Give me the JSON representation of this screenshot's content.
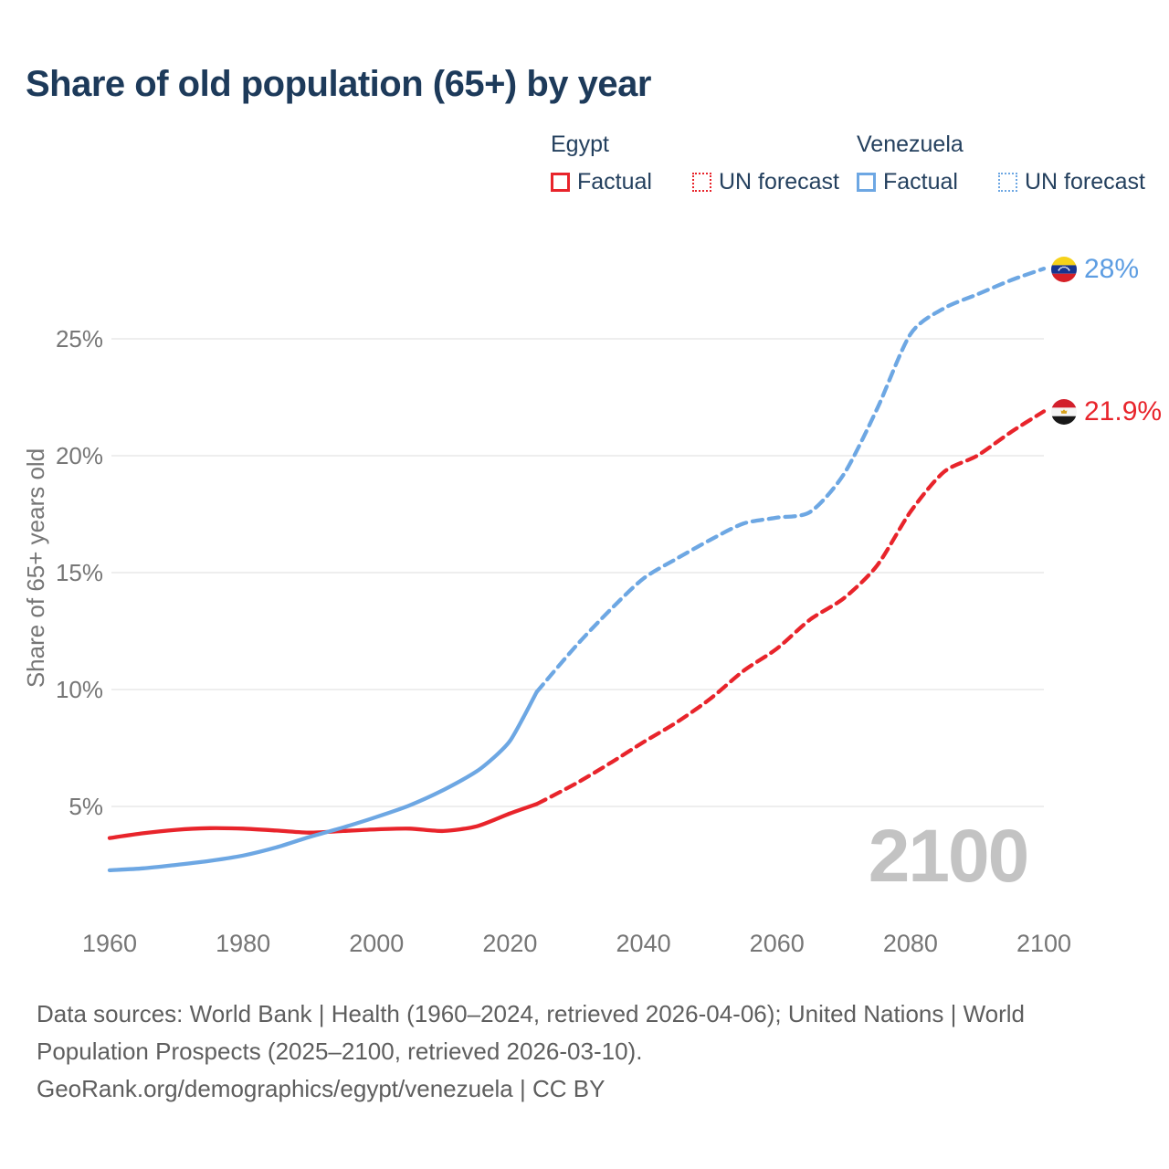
{
  "title": "Share of old population (65+) by year",
  "colors": {
    "title": "#1d3a5a",
    "legend_text": "#24405e",
    "egypt": "#e8242b",
    "venezuela": "#6da7e3",
    "venezuela_label": "#5d9de2",
    "grid": "#e9e9e9",
    "axis_text": "#767676",
    "watermark": "#c3c3c3",
    "footer_text": "#5e5e5e"
  },
  "legend": {
    "groups": [
      {
        "country": "Egypt",
        "color_key": "egypt",
        "items": [
          {
            "label": "Factual",
            "style": "solid"
          },
          {
            "label": "UN forecast",
            "style": "dotted"
          }
        ]
      },
      {
        "country": "Venezuela",
        "color_key": "venezuela",
        "items": [
          {
            "label": "Factual",
            "style": "solid"
          },
          {
            "label": "UN forecast",
            "style": "dotted"
          }
        ]
      }
    ]
  },
  "chart_data": {
    "type": "line",
    "title": "Share of old population (65+) by year",
    "xlabel": "",
    "ylabel": "Share of 65+ years old",
    "x_ticks": [
      1960,
      1980,
      2000,
      2020,
      2040,
      2060,
      2080,
      2100
    ],
    "y_ticks": [
      {
        "label": "5%",
        "value": 5
      },
      {
        "label": "10%",
        "value": 10
      },
      {
        "label": "15%",
        "value": 15
      },
      {
        "label": "20%",
        "value": 20
      },
      {
        "label": "25%",
        "value": 25
      }
    ],
    "xlim": [
      1960,
      2100
    ],
    "ylim": [
      2,
      28.5
    ],
    "grid": "horizontal-only",
    "legend_position": "top-right",
    "series": [
      {
        "name": "Egypt — Factual",
        "country": "Egypt",
        "style": "solid",
        "color": "#e8242b",
        "x": [
          1960,
          1965,
          1970,
          1975,
          1980,
          1985,
          1990,
          1995,
          2000,
          2005,
          2010,
          2015,
          2020,
          2024
        ],
        "values": [
          3.65,
          3.85,
          4.0,
          4.07,
          4.05,
          3.97,
          3.88,
          3.95,
          4.02,
          4.05,
          3.95,
          4.15,
          4.7,
          5.1
        ]
      },
      {
        "name": "Egypt — UN forecast",
        "country": "Egypt",
        "style": "dashed",
        "color": "#e8242b",
        "x": [
          2024,
          2030,
          2035,
          2040,
          2045,
          2050,
          2055,
          2060,
          2065,
          2070,
          2075,
          2080,
          2085,
          2090,
          2095,
          2100
        ],
        "values": [
          5.1,
          6.0,
          6.85,
          7.75,
          8.6,
          9.6,
          10.8,
          11.75,
          13.0,
          13.9,
          15.3,
          17.6,
          19.3,
          20.0,
          21.0,
          21.9
        ]
      },
      {
        "name": "Venezuela — Factual",
        "country": "Venezuela",
        "style": "solid",
        "color": "#6da7e3",
        "x": [
          1960,
          1965,
          1970,
          1975,
          1980,
          1985,
          1990,
          1995,
          2000,
          2005,
          2010,
          2015,
          2018,
          2020,
          2022,
          2024
        ],
        "values": [
          2.27,
          2.35,
          2.5,
          2.67,
          2.9,
          3.25,
          3.7,
          4.1,
          4.55,
          5.05,
          5.7,
          6.5,
          7.2,
          7.8,
          8.8,
          9.9
        ]
      },
      {
        "name": "Venezuela — UN forecast",
        "country": "Venezuela",
        "style": "dashed",
        "color": "#6da7e3",
        "x": [
          2024,
          2030,
          2035,
          2040,
          2045,
          2050,
          2055,
          2060,
          2065,
          2070,
          2075,
          2080,
          2085,
          2090,
          2095,
          2100
        ],
        "values": [
          9.9,
          11.9,
          13.4,
          14.75,
          15.6,
          16.4,
          17.1,
          17.35,
          17.6,
          19.2,
          22.0,
          25.2,
          26.3,
          26.9,
          27.5,
          28.0
        ]
      }
    ]
  },
  "end_labels": [
    {
      "country": "Venezuela",
      "value_label": "28%",
      "icon": "venezuela-flag-icon"
    },
    {
      "country": "Egypt",
      "value_label": "21.9%",
      "icon": "egypt-flag-icon"
    }
  ],
  "watermark": "2100",
  "footer": {
    "lines": [
      "Data sources: World Bank | Health (1960–2024, retrieved 2026-04-06); United Nations | World",
      "Population Prospects (2025–2100, retrieved 2026-03-10).",
      "GeoRank.org/demographics/egypt/venezuela | CC BY"
    ]
  }
}
